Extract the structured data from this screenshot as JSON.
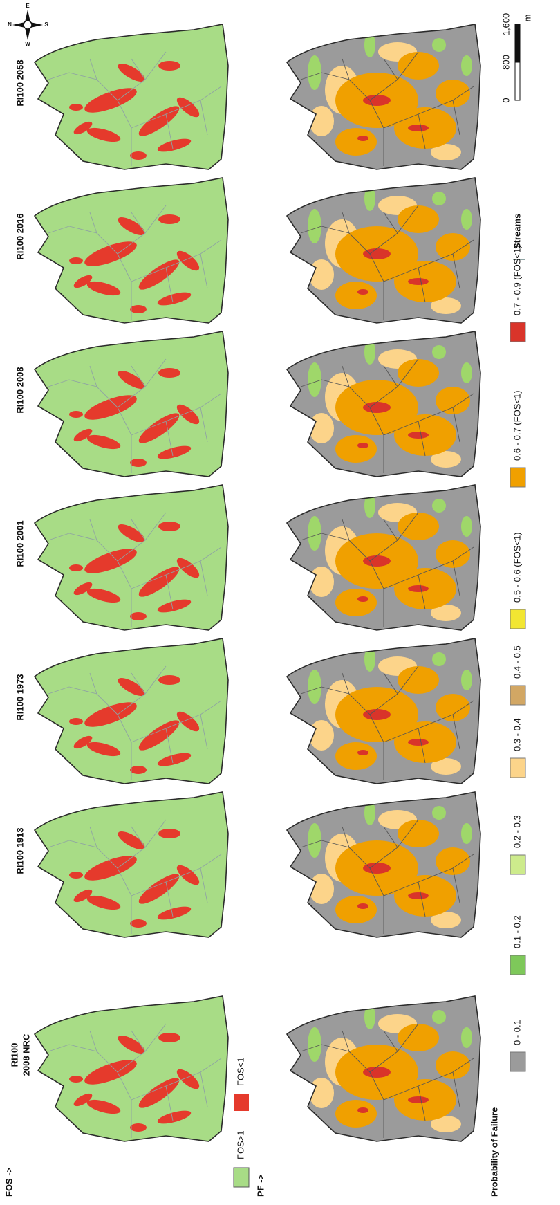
{
  "fos_label": "FOS ->",
  "pf_label": "PF ->",
  "panels": [
    {
      "lines": [
        "RI100 2058"
      ]
    },
    {
      "lines": [
        "RI100 2016"
      ]
    },
    {
      "lines": [
        "RI100 2008"
      ]
    },
    {
      "lines": [
        "RI100 2001"
      ]
    },
    {
      "lines": [
        "RI100 1973"
      ]
    },
    {
      "lines": [
        "RI100 1913"
      ]
    },
    {
      "lines": [
        "RI100",
        "2008 NRC"
      ]
    }
  ],
  "fos_legend": [
    "FOS>1",
    "FOS<1"
  ],
  "pf_legend": {
    "title": "Probability of Failure",
    "items": [
      "0 - 0.1",
      "0.1 - 0.2",
      "0.2 - 0.3",
      "0.3 - 0.4",
      "0.4 - 0.5",
      "0.5 - 0.6 (FOS<1)",
      "0.6 - 0.7 (FOS<1)",
      "0.7 - 0.9 (FOS<1)"
    ]
  },
  "streams": "Streams",
  "scale": {
    "ticks": [
      "0",
      "800",
      "1,600"
    ],
    "unit": "m"
  },
  "compass": {
    "n": "N",
    "e": "E",
    "s": "S",
    "w": "W"
  }
}
